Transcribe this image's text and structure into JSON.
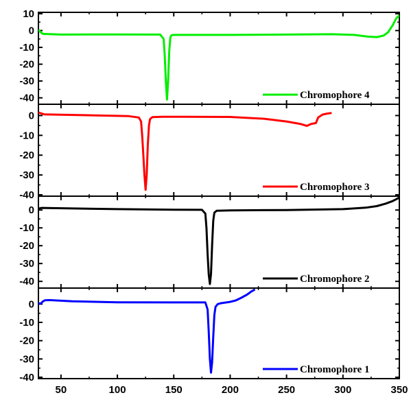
{
  "chart_data": {
    "type": "line",
    "layout": "stacked-panels",
    "x_range": [
      30,
      350
    ],
    "x_ticks": [
      50,
      100,
      150,
      200,
      250,
      300,
      350
    ],
    "x_tick_labels": [
      "50",
      "100",
      "150",
      "200",
      "250",
      "300",
      "350"
    ],
    "xlabel": "",
    "ylabel": "",
    "grid": false,
    "legend_position": "bottom-right",
    "panels": [
      {
        "series_name": "Chromophore 4",
        "color": "#00ee00",
        "ylim": [
          -43,
          10
        ],
        "y_ticks": [
          10,
          0,
          -10,
          -20,
          -30,
          -40
        ],
        "y_tick_labels": [
          "10",
          "0",
          "-10",
          "-20",
          "-30",
          "-40"
        ],
        "points": [
          [
            30,
            0.5
          ],
          [
            32,
            -1
          ],
          [
            34,
            -2
          ],
          [
            50,
            -2.4
          ],
          [
            100,
            -2.3
          ],
          [
            138,
            -2.4
          ],
          [
            141,
            -5
          ],
          [
            142,
            -15
          ],
          [
            143,
            -30
          ],
          [
            144,
            -41
          ],
          [
            145,
            -30
          ],
          [
            146,
            -12
          ],
          [
            147,
            -4
          ],
          [
            148,
            -2.8
          ],
          [
            150,
            -2.6
          ],
          [
            200,
            -2.6
          ],
          [
            250,
            -2.4
          ],
          [
            290,
            -2.2
          ],
          [
            310,
            -2.6
          ],
          [
            322,
            -3.6
          ],
          [
            330,
            -3.9
          ],
          [
            336,
            -3
          ],
          [
            340,
            -1
          ],
          [
            344,
            3
          ],
          [
            347,
            7
          ],
          [
            349,
            8.5
          ],
          [
            350,
            9
          ]
        ]
      },
      {
        "series_name": "Chromophore 3",
        "color": "#ff0000",
        "ylim": [
          -40,
          5
        ],
        "y_ticks": [
          0,
          -10,
          -20,
          -30,
          -40
        ],
        "y_tick_labels": [
          "0",
          "-10",
          "-20",
          "-30",
          "-40"
        ],
        "points": [
          [
            30,
            1.5
          ],
          [
            35,
            0.6
          ],
          [
            50,
            0.4
          ],
          [
            80,
            0.1
          ],
          [
            110,
            -0.3
          ],
          [
            119,
            -1
          ],
          [
            121,
            -3
          ],
          [
            122,
            -10
          ],
          [
            123,
            -20
          ],
          [
            124,
            -30
          ],
          [
            125,
            -37.5
          ],
          [
            126,
            -30
          ],
          [
            127,
            -15
          ],
          [
            128,
            -5
          ],
          [
            129,
            -1.8
          ],
          [
            131,
            -0.8
          ],
          [
            140,
            -0.6
          ],
          [
            160,
            -0.6
          ],
          [
            200,
            -0.7
          ],
          [
            230,
            -1.6
          ],
          [
            250,
            -3
          ],
          [
            262,
            -4.2
          ],
          [
            268,
            -5.2
          ],
          [
            272,
            -4.2
          ],
          [
            276,
            -3.8
          ],
          [
            278,
            -1
          ],
          [
            282,
            0.5
          ],
          [
            286,
            1
          ],
          [
            290,
            1.3
          ]
        ]
      },
      {
        "series_name": "Chromophore 2",
        "color": "#000000",
        "ylim": [
          -43,
          7
        ],
        "y_ticks": [
          0,
          -10,
          -20,
          -30,
          -40
        ],
        "y_tick_labels": [
          "0",
          "-10",
          "-20",
          "-30",
          "-40"
        ],
        "points": [
          [
            30,
            0.8
          ],
          [
            33,
            1.2
          ],
          [
            60,
            0.9
          ],
          [
            100,
            0.5
          ],
          [
            150,
            0.2
          ],
          [
            175,
            0.1
          ],
          [
            178,
            -2
          ],
          [
            179,
            -10
          ],
          [
            180,
            -25
          ],
          [
            181,
            -36
          ],
          [
            182,
            -41.5
          ],
          [
            183,
            -36
          ],
          [
            184,
            -20
          ],
          [
            185,
            -6
          ],
          [
            186,
            -1.5
          ],
          [
            188,
            -0.4
          ],
          [
            200,
            -0.2
          ],
          [
            250,
            0
          ],
          [
            300,
            0.5
          ],
          [
            320,
            1.3
          ],
          [
            330,
            2.2
          ],
          [
            338,
            3.6
          ],
          [
            344,
            5
          ],
          [
            348,
            6.3
          ],
          [
            350,
            7
          ]
        ]
      },
      {
        "series_name": "Chromophore 1",
        "color": "#0000ff",
        "ylim": [
          -40,
          8
        ],
        "y_ticks": [
          0,
          -10,
          -20,
          -30,
          -40
        ],
        "y_tick_labels": [
          "0",
          "-10",
          "-20",
          "-30",
          "-40"
        ],
        "points": [
          [
            30,
            0.5
          ],
          [
            32,
            0.2
          ],
          [
            34,
            1.5
          ],
          [
            36,
            2.1
          ],
          [
            40,
            2.2
          ],
          [
            60,
            1.5
          ],
          [
            100,
            1
          ],
          [
            150,
            0.9
          ],
          [
            178,
            0.9
          ],
          [
            180,
            -3
          ],
          [
            181,
            -15
          ],
          [
            182,
            -30
          ],
          [
            183,
            -37.5
          ],
          [
            184,
            -32
          ],
          [
            185,
            -18
          ],
          [
            186,
            -6
          ],
          [
            187,
            -1.5
          ],
          [
            189,
            0
          ],
          [
            192,
            0.5
          ],
          [
            200,
            1.2
          ],
          [
            205,
            2
          ],
          [
            210,
            3.5
          ],
          [
            215,
            5.2
          ],
          [
            219,
            7
          ],
          [
            222,
            8
          ]
        ]
      }
    ]
  }
}
